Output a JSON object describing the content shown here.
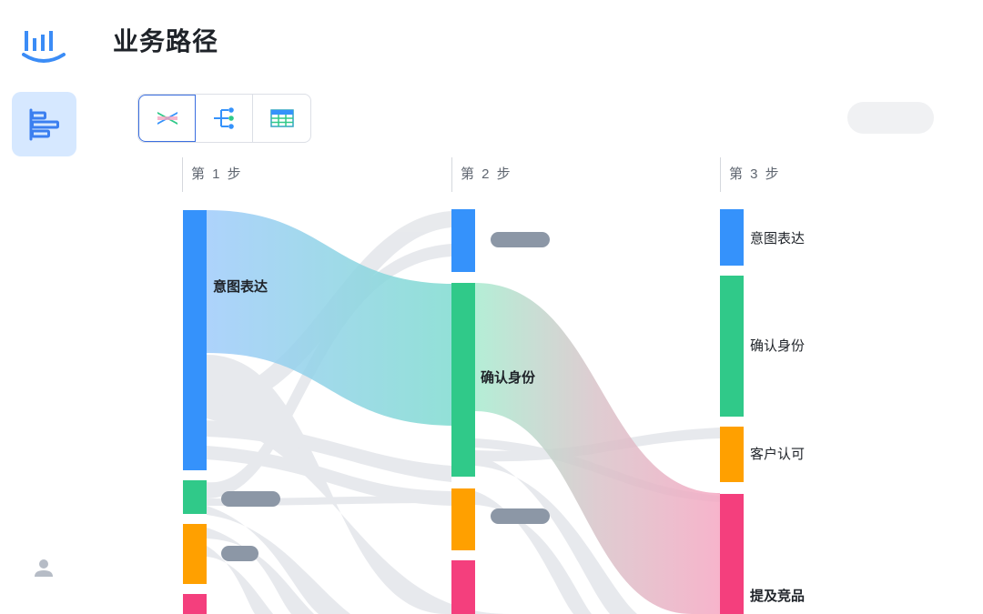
{
  "header": {
    "title": "业务路径"
  },
  "steps": [
    {
      "label": "第 1 步"
    },
    {
      "label": "第 2 步"
    },
    {
      "label": "第 3 步"
    }
  ],
  "colors": {
    "blue": "#3592fb",
    "green": "#30c989",
    "orange": "#ffa000",
    "pink": "#f43f7d",
    "gray_pill": "#8c97a6",
    "link_gray": "#d5d8df"
  },
  "nodes": {
    "s1_intent": "意图表达",
    "s2_confirm": "确认身份",
    "s3_intent": "意图表达",
    "s3_confirm": "确认身份",
    "s3_approve": "客户认可",
    "s3_compete": "提及竞品"
  }
}
